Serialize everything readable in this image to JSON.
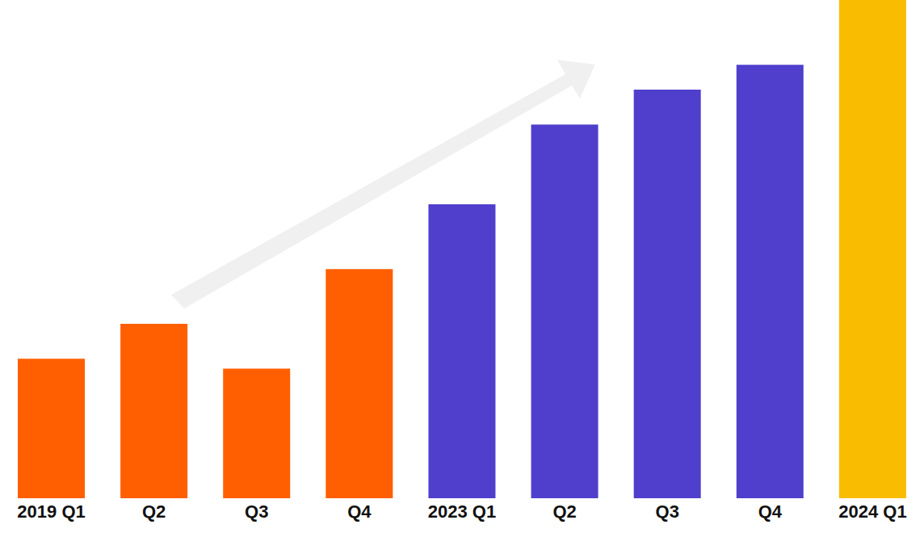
{
  "chart_data": {
    "type": "bar",
    "categories": [
      "2019 Q1",
      "Q2",
      "Q3",
      "Q4",
      "2023 Q1",
      "Q2",
      "Q3",
      "Q4",
      "2024 Q1"
    ],
    "values": [
      28,
      35,
      26,
      46,
      59,
      75,
      82,
      87,
      100
    ],
    "colors": [
      "#ff5f00",
      "#ff5f00",
      "#ff5f00",
      "#ff5f00",
      "#4f3fcc",
      "#4f3fcc",
      "#4f3fcc",
      "#4f3fcc",
      "#f9bc00"
    ],
    "ylim": [
      0,
      100
    ],
    "tick_labels": "x",
    "grid": false
  }
}
